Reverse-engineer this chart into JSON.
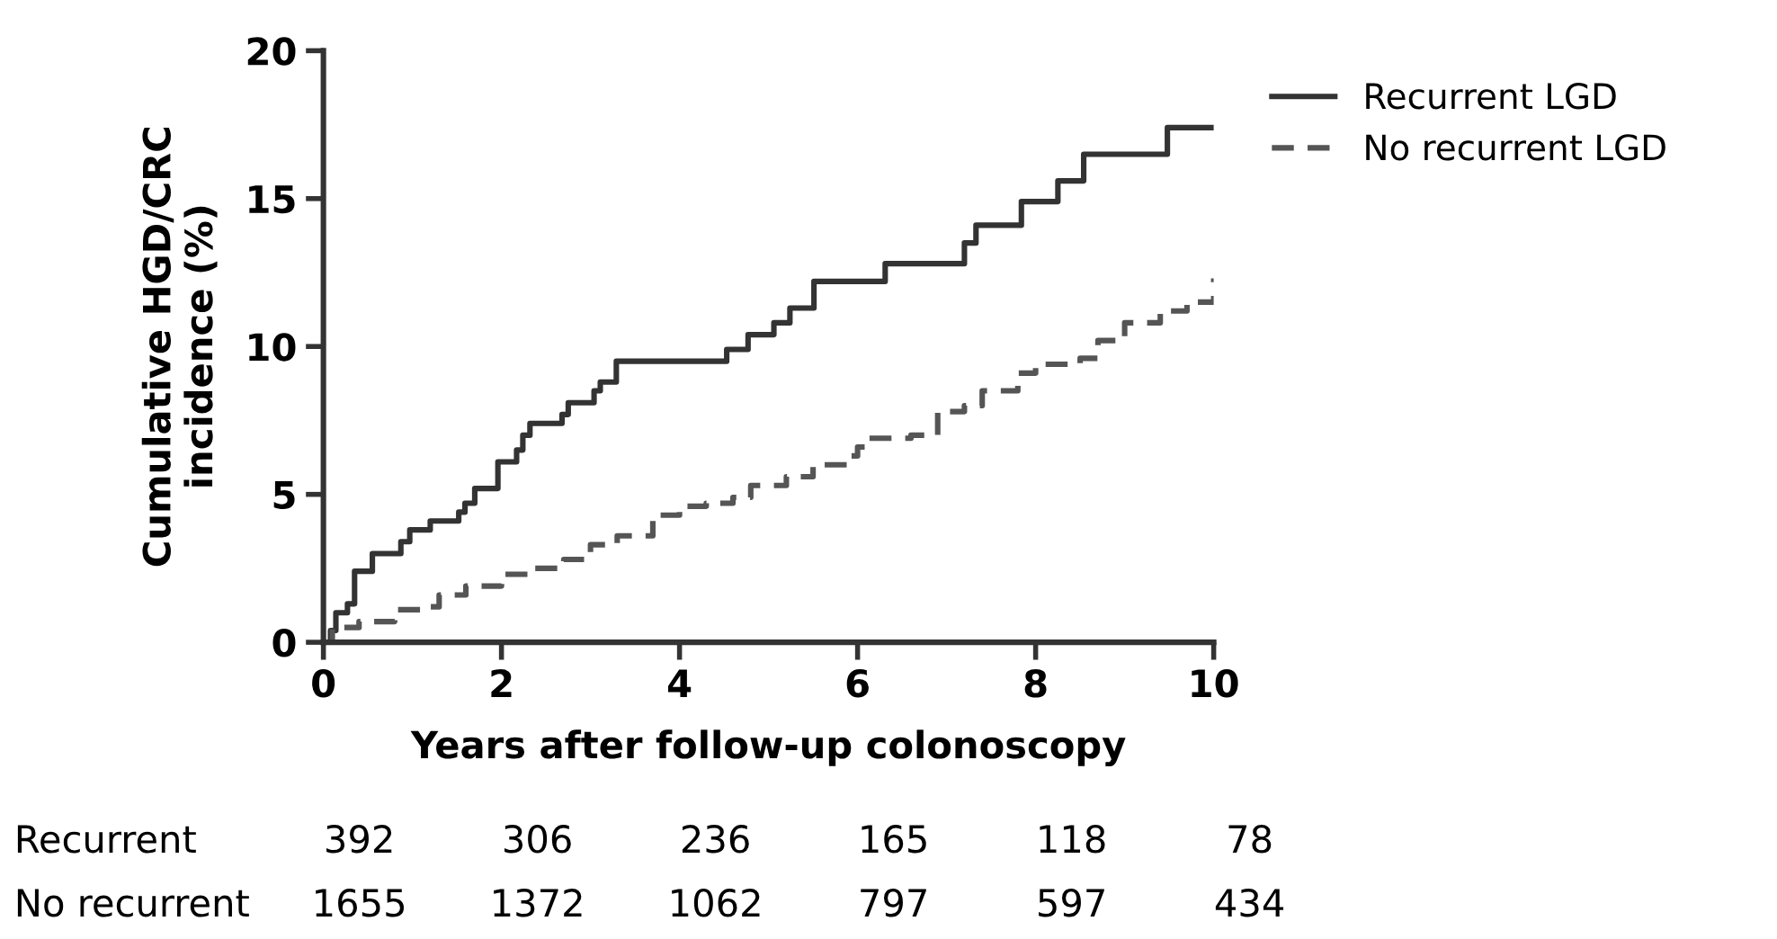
{
  "chart_data": {
    "type": "step",
    "xlabel": "Years after follow-up colonoscopy",
    "ylabel": "Cumulative HGD/CRC\nincidence (%)",
    "xlim": [
      0,
      10
    ],
    "xticks": [
      0,
      2,
      4,
      6,
      8,
      10
    ],
    "ylim": [
      0,
      20
    ],
    "yticks": [
      0,
      5,
      10,
      15,
      20
    ],
    "grid": false,
    "legend": "top right",
    "series": [
      {
        "name": "Recurrent LGD",
        "color": "#333333",
        "line_style": "solid",
        "x": [
          0,
          0.08,
          0.14,
          0.27,
          0.35,
          0.55,
          0.87,
          0.97,
          1.2,
          1.52,
          1.59,
          1.7,
          1.96,
          2.17,
          2.24,
          2.32,
          2.68,
          2.75,
          3.04,
          3.11,
          3.29,
          4.53,
          4.77,
          5.06,
          5.24,
          5.51,
          6.31,
          7.2,
          7.33,
          7.84,
          8.25,
          8.54,
          9.48,
          10
        ],
        "values": [
          0,
          0.4,
          1.0,
          1.3,
          2.4,
          3.0,
          3.4,
          3.8,
          4.1,
          4.4,
          4.7,
          5.2,
          6.1,
          6.5,
          7.0,
          7.4,
          7.7,
          8.1,
          8.5,
          8.8,
          9.5,
          9.9,
          10.4,
          10.8,
          11.3,
          12.2,
          12.8,
          13.5,
          14.1,
          14.9,
          15.6,
          16.5,
          17.4,
          17.4
        ]
      },
      {
        "name": "No recurrent LGD",
        "color": "#555555",
        "line_style": "dashed",
        "x": [
          0,
          0.1,
          0.4,
          0.8,
          1.1,
          1.3,
          1.6,
          2.0,
          2.3,
          2.7,
          3.0,
          3.3,
          3.7,
          4.0,
          4.3,
          4.6,
          4.8,
          5.2,
          5.5,
          5.9,
          6.0,
          6.1,
          6.6,
          6.9,
          7.2,
          7.4,
          7.8,
          8.0,
          8.5,
          8.7,
          9.0,
          9.4,
          9.7,
          10
        ],
        "values": [
          0,
          0.5,
          0.7,
          1.1,
          1.2,
          1.6,
          1.9,
          2.3,
          2.5,
          2.8,
          3.3,
          3.6,
          4.3,
          4.6,
          4.7,
          4.9,
          5.3,
          5.6,
          6.0,
          6.3,
          6.6,
          6.9,
          7.0,
          7.8,
          8.0,
          8.5,
          9.1,
          9.4,
          9.6,
          10.2,
          10.8,
          11.2,
          11.5,
          12.3
        ]
      }
    ],
    "annotations": [
      "Recurrent",
      "392",
      "306",
      "236",
      "165",
      "118",
      "78",
      "No recurrent",
      "1655",
      "1372",
      "1062",
      "797",
      "597",
      "434"
    ]
  }
}
